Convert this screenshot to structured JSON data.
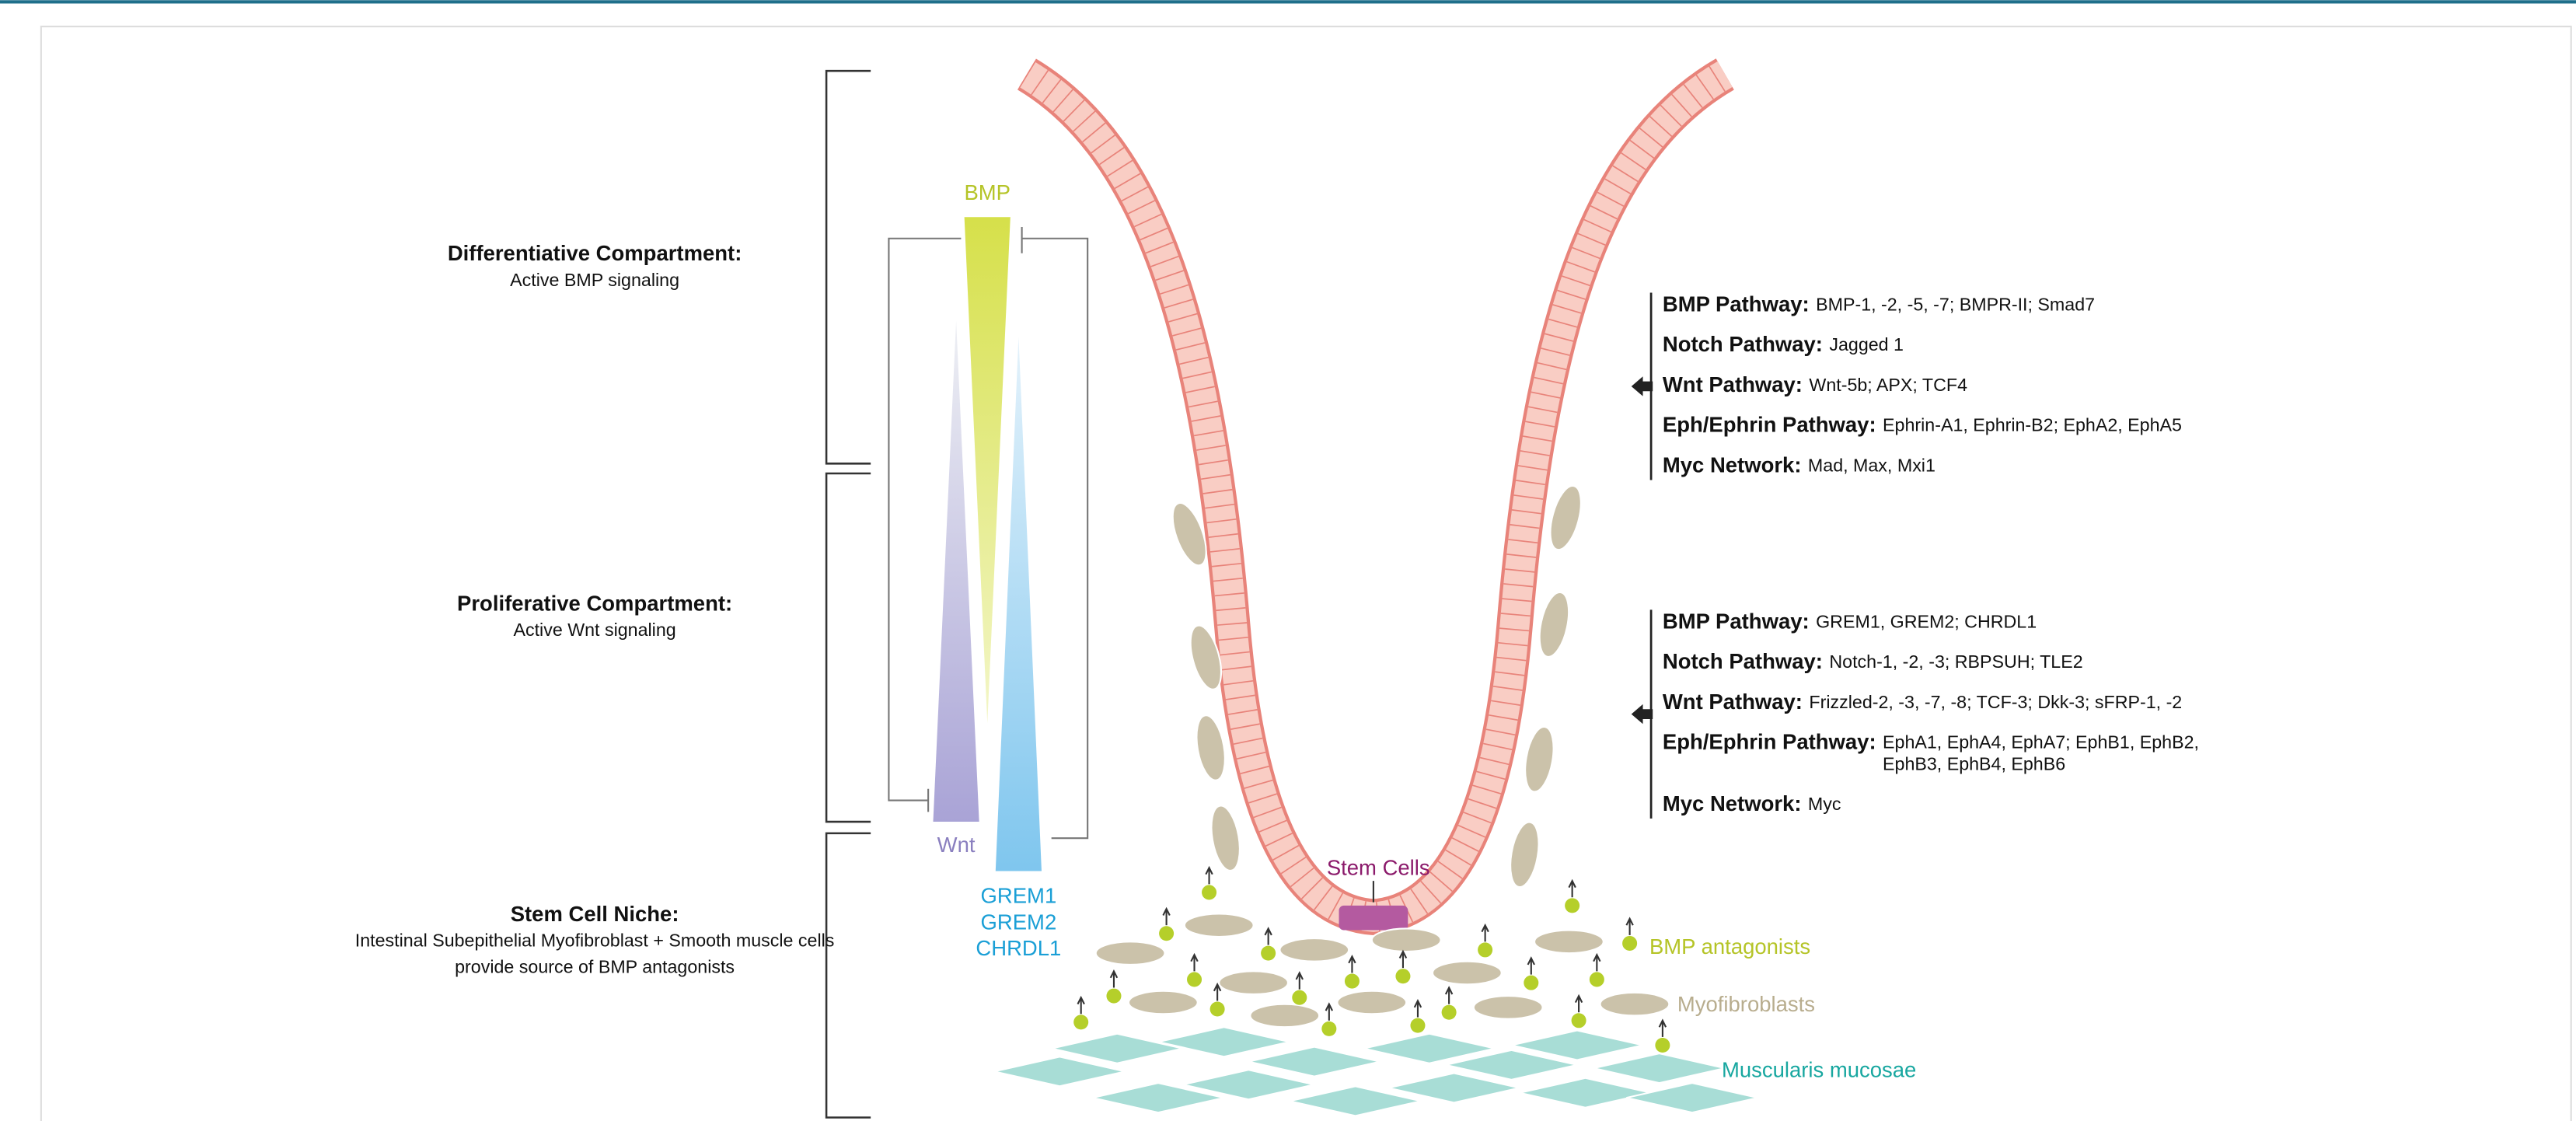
{
  "compartments": [
    {
      "title": "Differentiative Compartment:",
      "lines": [
        "Active BMP signaling"
      ]
    },
    {
      "title": "Proliferative Compartment:",
      "lines": [
        "Active Wnt signaling"
      ]
    },
    {
      "title": "Stem Cell Niche:",
      "lines": [
        "Intestinal Subepithelial Myofibroblast + Smooth muscle cells",
        "provide source of BMP antagonists"
      ]
    }
  ],
  "gradients": {
    "bmp": "BMP",
    "wnt": "Wnt",
    "antagonists": [
      "GREM1",
      "GREM2",
      "CHRDL1"
    ]
  },
  "pathway_groups": [
    {
      "items": [
        {
          "name": "BMP Pathway:",
          "genes": [
            "BMP-1, -2, -5, -7; BMPR-II; Smad7"
          ]
        },
        {
          "name": "Notch Pathway:",
          "genes": [
            "Jagged 1"
          ]
        },
        {
          "name": "Wnt Pathway:",
          "genes": [
            "Wnt-5b; APX; TCF4"
          ]
        },
        {
          "name": "Eph/Ephrin Pathway:",
          "genes": [
            "Ephrin-A1, Ephrin-B2; EphA2, EphA5"
          ]
        },
        {
          "name": "Myc Network:",
          "genes": [
            "Mad, Max, Mxi1"
          ]
        }
      ]
    },
    {
      "items": [
        {
          "name": "BMP Pathway:",
          "genes": [
            "GREM1, GREM2; CHRDL1"
          ]
        },
        {
          "name": "Notch Pathway:",
          "genes": [
            "Notch-1, -2, -3; RBPSUH; TLE2"
          ]
        },
        {
          "name": "Wnt Pathway:",
          "genes": [
            "Frizzled-2, -3, -7, -8; TCF-3; Dkk-3; sFRP-1, -2"
          ]
        },
        {
          "name": "Eph/Ephrin Pathway:",
          "genes": [
            "EphA1, EphA4, EphA7; EphB1, EphB2,",
            "EphB3, EphB4, EphB6"
          ]
        },
        {
          "name": "Myc Network:",
          "genes": [
            "Myc"
          ]
        }
      ]
    }
  ],
  "labels": {
    "stem_cells": "Stem Cells",
    "bmp_antagonists": "BMP antagonists",
    "myofibroblasts": "Myofibroblasts",
    "muscularis": "Muscularis mucosae"
  }
}
